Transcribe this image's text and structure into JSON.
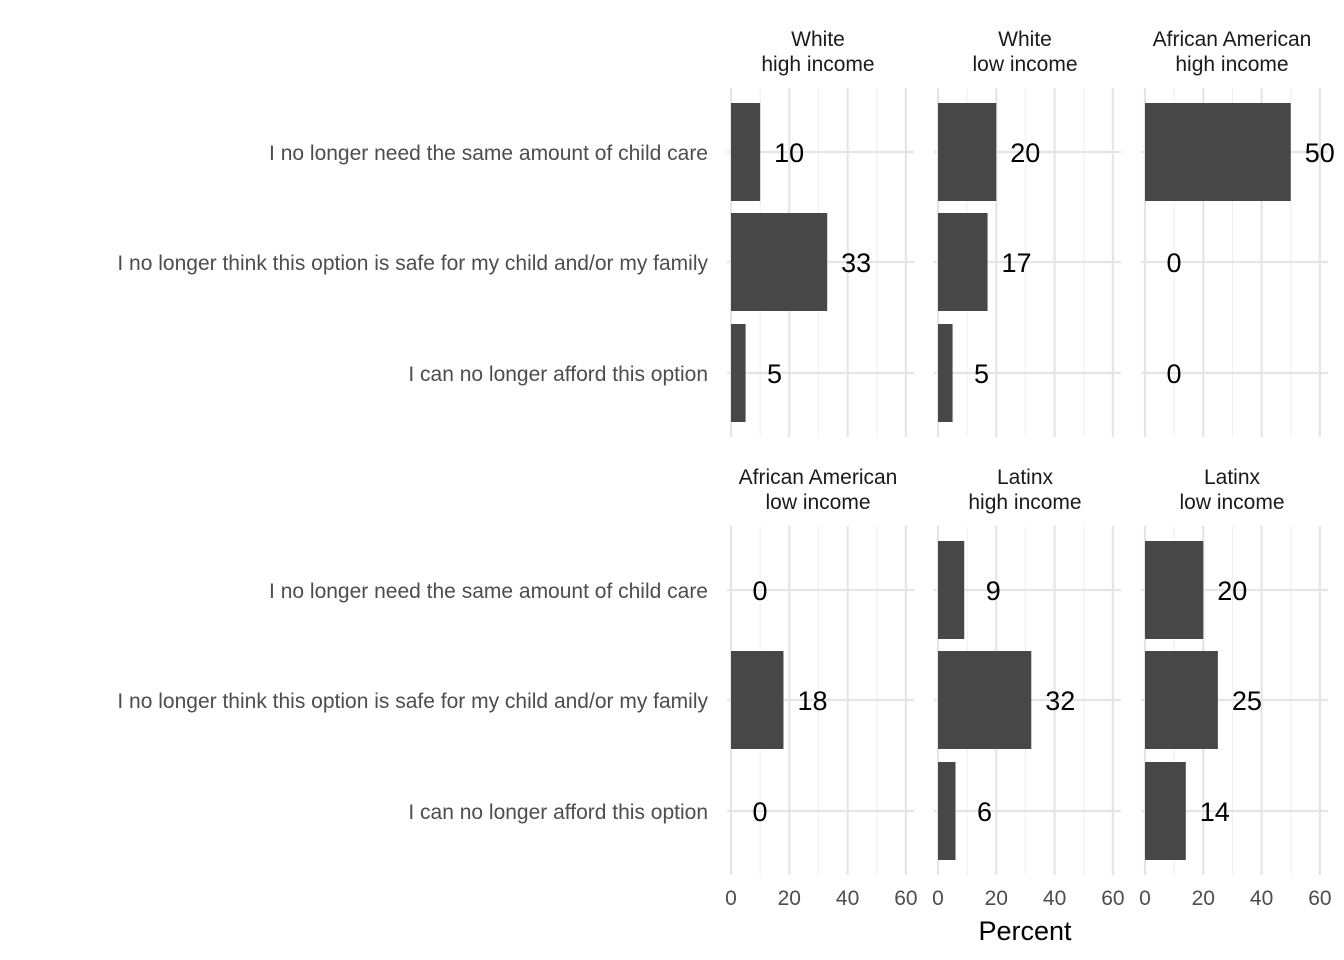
{
  "chart_data": {
    "type": "bar",
    "orientation": "horizontal",
    "xlabel": "Percent",
    "ylabel": "",
    "xlim": [
      0,
      60
    ],
    "x_ticks": [
      0,
      20,
      40,
      60
    ],
    "grid": true,
    "bar_color": "#474747",
    "categories": [
      "I no longer need the same amount of child care",
      "I no longer think this option is safe for my child and/or my family",
      "I can no longer afford this option"
    ],
    "panels": [
      {
        "title_line1": "White",
        "title_line2": "high income",
        "values": [
          10,
          33,
          5
        ]
      },
      {
        "title_line1": "White",
        "title_line2": "low income",
        "values": [
          20,
          17,
          5
        ]
      },
      {
        "title_line1": "African American",
        "title_line2": "high income",
        "values": [
          50,
          0,
          0
        ]
      },
      {
        "title_line1": "African American",
        "title_line2": "low income",
        "values": [
          0,
          18,
          0
        ]
      },
      {
        "title_line1": "Latinx",
        "title_line2": "high income",
        "values": [
          9,
          32,
          6
        ]
      },
      {
        "title_line1": "Latinx",
        "title_line2": "low income",
        "values": [
          20,
          25,
          14
        ]
      }
    ]
  }
}
